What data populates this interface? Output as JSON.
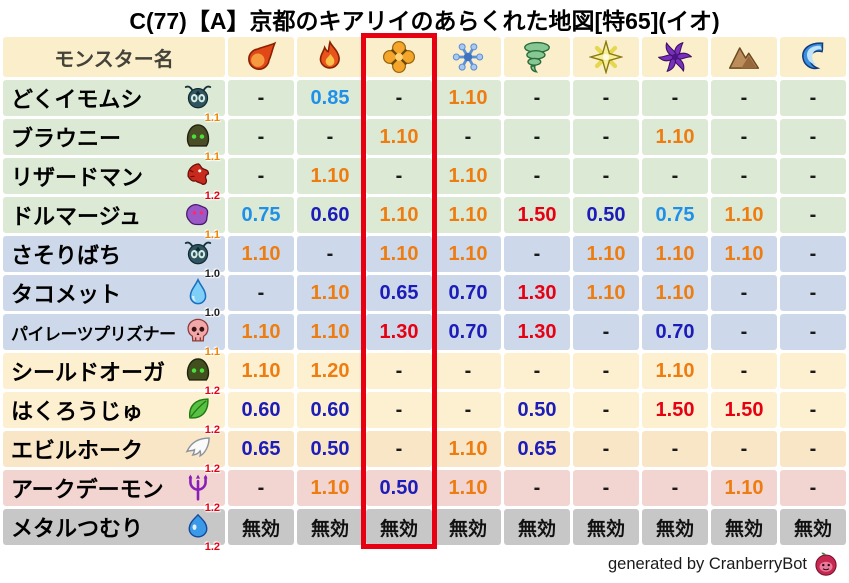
{
  "title": "C(77)【A】京都のキアリイのあらくれた地図[特65](イオ)",
  "header": {
    "monster_col_label": "モンスター名",
    "bg": "#fbeecb",
    "elements": [
      "fireball",
      "flame",
      "explosion",
      "snowflake",
      "tornado",
      "spark",
      "pinwheel",
      "mountain",
      "wave"
    ]
  },
  "highlight": {
    "element": "explosion",
    "column_index": 2,
    "color": "#e60012"
  },
  "value_colors": {
    "orange": "#ee7d11",
    "red": "#e60012",
    "blue": "#1e90e8",
    "dblue": "#1c1cb8",
    "dash": "#1a1a1a",
    "null": "#111111"
  },
  "rows": [
    {
      "name": "どくイモムシ",
      "icon": "bug",
      "badge": "1.1",
      "badge_color": "orange",
      "bg": "#dce9d5",
      "values": [
        {
          "t": "-",
          "c": "dash"
        },
        {
          "t": "0.85",
          "c": "blue"
        },
        {
          "t": "-",
          "c": "dash"
        },
        {
          "t": "1.10",
          "c": "orange"
        },
        {
          "t": "-",
          "c": "dash"
        },
        {
          "t": "-",
          "c": "dash"
        },
        {
          "t": "-",
          "c": "dash"
        },
        {
          "t": "-",
          "c": "dash"
        },
        {
          "t": "-",
          "c": "dash"
        }
      ]
    },
    {
      "name": "ブラウニー",
      "icon": "hood",
      "badge": "1.1",
      "badge_color": "orange",
      "bg": "#dce9d5",
      "values": [
        {
          "t": "-",
          "c": "dash"
        },
        {
          "t": "-",
          "c": "dash"
        },
        {
          "t": "1.10",
          "c": "orange"
        },
        {
          "t": "-",
          "c": "dash"
        },
        {
          "t": "-",
          "c": "dash"
        },
        {
          "t": "-",
          "c": "dash"
        },
        {
          "t": "1.10",
          "c": "orange"
        },
        {
          "t": "-",
          "c": "dash"
        },
        {
          "t": "-",
          "c": "dash"
        }
      ]
    },
    {
      "name": "リザードマン",
      "icon": "dragon",
      "badge": "1.2",
      "badge_color": "red",
      "bg": "#dce9d5",
      "values": [
        {
          "t": "-",
          "c": "dash"
        },
        {
          "t": "1.10",
          "c": "orange"
        },
        {
          "t": "-",
          "c": "dash"
        },
        {
          "t": "1.10",
          "c": "orange"
        },
        {
          "t": "-",
          "c": "dash"
        },
        {
          "t": "-",
          "c": "dash"
        },
        {
          "t": "-",
          "c": "dash"
        },
        {
          "t": "-",
          "c": "dash"
        },
        {
          "t": "-",
          "c": "dash"
        }
      ]
    },
    {
      "name": "ドルマージュ",
      "icon": "blob",
      "badge": "1.1",
      "badge_color": "orange",
      "bg": "#dce9d5",
      "values": [
        {
          "t": "0.75",
          "c": "blue"
        },
        {
          "t": "0.60",
          "c": "dblue"
        },
        {
          "t": "1.10",
          "c": "orange"
        },
        {
          "t": "1.10",
          "c": "orange"
        },
        {
          "t": "1.50",
          "c": "red"
        },
        {
          "t": "0.50",
          "c": "dblue"
        },
        {
          "t": "0.75",
          "c": "blue"
        },
        {
          "t": "1.10",
          "c": "orange"
        },
        {
          "t": "-",
          "c": "dash"
        }
      ]
    },
    {
      "name": "さそりばち",
      "icon": "bug",
      "badge": "1.0",
      "badge_color": "black",
      "bg": "#cdd9ea",
      "values": [
        {
          "t": "1.10",
          "c": "orange"
        },
        {
          "t": "-",
          "c": "dash"
        },
        {
          "t": "1.10",
          "c": "orange"
        },
        {
          "t": "1.10",
          "c": "orange"
        },
        {
          "t": "-",
          "c": "dash"
        },
        {
          "t": "1.10",
          "c": "orange"
        },
        {
          "t": "1.10",
          "c": "orange"
        },
        {
          "t": "1.10",
          "c": "orange"
        },
        {
          "t": "-",
          "c": "dash"
        }
      ]
    },
    {
      "name": "タコメット",
      "icon": "droplet",
      "badge": "1.0",
      "badge_color": "black",
      "bg": "#cdd9ea",
      "values": [
        {
          "t": "-",
          "c": "dash"
        },
        {
          "t": "1.10",
          "c": "orange"
        },
        {
          "t": "0.65",
          "c": "dblue"
        },
        {
          "t": "0.70",
          "c": "dblue"
        },
        {
          "t": "1.30",
          "c": "red"
        },
        {
          "t": "1.10",
          "c": "orange"
        },
        {
          "t": "1.10",
          "c": "orange"
        },
        {
          "t": "-",
          "c": "dash"
        },
        {
          "t": "-",
          "c": "dash"
        }
      ]
    },
    {
      "name": "パイレーツプリズナー",
      "icon": "skull",
      "badge": "1.1",
      "badge_color": "orange",
      "bg": "#cdd9ea",
      "values": [
        {
          "t": "1.10",
          "c": "orange"
        },
        {
          "t": "1.10",
          "c": "orange"
        },
        {
          "t": "1.30",
          "c": "red"
        },
        {
          "t": "0.70",
          "c": "dblue"
        },
        {
          "t": "1.30",
          "c": "red"
        },
        {
          "t": "-",
          "c": "dash"
        },
        {
          "t": "0.70",
          "c": "dblue"
        },
        {
          "t": "-",
          "c": "dash"
        },
        {
          "t": "-",
          "c": "dash"
        }
      ]
    },
    {
      "name": "シールドオーガ",
      "icon": "helmet",
      "badge": "1.2",
      "badge_color": "red",
      "bg": "#fdf0d0",
      "values": [
        {
          "t": "1.10",
          "c": "orange"
        },
        {
          "t": "1.20",
          "c": "orange"
        },
        {
          "t": "-",
          "c": "dash"
        },
        {
          "t": "-",
          "c": "dash"
        },
        {
          "t": "-",
          "c": "dash"
        },
        {
          "t": "-",
          "c": "dash"
        },
        {
          "t": "1.10",
          "c": "orange"
        },
        {
          "t": "-",
          "c": "dash"
        },
        {
          "t": "-",
          "c": "dash"
        }
      ]
    },
    {
      "name": "はくろうじゅ",
      "icon": "leaf",
      "badge": "1.2",
      "badge_color": "red",
      "bg": "#fdf0d0",
      "values": [
        {
          "t": "0.60",
          "c": "dblue"
        },
        {
          "t": "0.60",
          "c": "dblue"
        },
        {
          "t": "-",
          "c": "dash"
        },
        {
          "t": "-",
          "c": "dash"
        },
        {
          "t": "0.50",
          "c": "dblue"
        },
        {
          "t": "-",
          "c": "dash"
        },
        {
          "t": "1.50",
          "c": "red"
        },
        {
          "t": "1.50",
          "c": "red"
        },
        {
          "t": "-",
          "c": "dash"
        }
      ]
    },
    {
      "name": "エビルホーク",
      "icon": "wing",
      "badge": "1.2",
      "badge_color": "red",
      "bg": "#f9e6c6",
      "values": [
        {
          "t": "0.65",
          "c": "dblue"
        },
        {
          "t": "0.50",
          "c": "dblue"
        },
        {
          "t": "-",
          "c": "dash"
        },
        {
          "t": "1.10",
          "c": "orange"
        },
        {
          "t": "0.65",
          "c": "dblue"
        },
        {
          "t": "-",
          "c": "dash"
        },
        {
          "t": "-",
          "c": "dash"
        },
        {
          "t": "-",
          "c": "dash"
        },
        {
          "t": "-",
          "c": "dash"
        }
      ]
    },
    {
      "name": "アークデーモン",
      "icon": "trident",
      "badge": "1.2",
      "badge_color": "red",
      "bg": "#f2d4d0",
      "values": [
        {
          "t": "-",
          "c": "dash"
        },
        {
          "t": "1.10",
          "c": "orange"
        },
        {
          "t": "0.50",
          "c": "dblue"
        },
        {
          "t": "1.10",
          "c": "orange"
        },
        {
          "t": "-",
          "c": "dash"
        },
        {
          "t": "-",
          "c": "dash"
        },
        {
          "t": "-",
          "c": "dash"
        },
        {
          "t": "1.10",
          "c": "orange"
        },
        {
          "t": "-",
          "c": "dash"
        }
      ]
    },
    {
      "name": "メタルつむり",
      "icon": "slime",
      "badge": "1.2",
      "badge_color": "red",
      "bg": "#c7c7c7",
      "values": [
        {
          "t": "無効",
          "c": "null"
        },
        {
          "t": "無効",
          "c": "null"
        },
        {
          "t": "無効",
          "c": "null"
        },
        {
          "t": "無効",
          "c": "null"
        },
        {
          "t": "無効",
          "c": "null"
        },
        {
          "t": "無効",
          "c": "null"
        },
        {
          "t": "無効",
          "c": "null"
        },
        {
          "t": "無効",
          "c": "null"
        },
        {
          "t": "無効",
          "c": "null"
        }
      ]
    }
  ],
  "footer": {
    "credit": "generated by CranberryBot",
    "icon": "cranberry"
  },
  "chart_data": {
    "type": "table",
    "title": "C(77)【A】京都のキアリイのあらくれた地図[特65](イオ)",
    "columns": [
      "monster",
      "fireball",
      "flame",
      "explosion",
      "snowflake",
      "tornado",
      "spark",
      "pinwheel",
      "mountain",
      "wave"
    ],
    "highlighted_column": "explosion",
    "rows": [
      [
        "どくイモムシ",
        "-",
        "0.85",
        "-",
        "1.10",
        "-",
        "-",
        "-",
        "-",
        "-"
      ],
      [
        "ブラウニー",
        "-",
        "-",
        "1.10",
        "-",
        "-",
        "-",
        "1.10",
        "-",
        "-"
      ],
      [
        "リザードマン",
        "-",
        "1.10",
        "-",
        "1.10",
        "-",
        "-",
        "-",
        "-",
        "-"
      ],
      [
        "ドルマージュ",
        "0.75",
        "0.60",
        "1.10",
        "1.10",
        "1.50",
        "0.50",
        "0.75",
        "1.10",
        "-"
      ],
      [
        "さそりばち",
        "1.10",
        "-",
        "1.10",
        "1.10",
        "-",
        "1.10",
        "1.10",
        "1.10",
        "-"
      ],
      [
        "タコメット",
        "-",
        "1.10",
        "0.65",
        "0.70",
        "1.30",
        "1.10",
        "1.10",
        "-",
        "-"
      ],
      [
        "パイレーツプリズナー",
        "1.10",
        "1.10",
        "1.30",
        "0.70",
        "1.30",
        "-",
        "0.70",
        "-",
        "-"
      ],
      [
        "シールドオーガ",
        "1.10",
        "1.20",
        "-",
        "-",
        "-",
        "-",
        "1.10",
        "-",
        "-"
      ],
      [
        "はくろうじゅ",
        "0.60",
        "0.60",
        "-",
        "-",
        "0.50",
        "-",
        "1.50",
        "1.50",
        "-"
      ],
      [
        "エビルホーク",
        "0.65",
        "0.50",
        "-",
        "1.10",
        "0.65",
        "-",
        "-",
        "-",
        "-"
      ],
      [
        "アークデーモン",
        "-",
        "1.10",
        "0.50",
        "1.10",
        "-",
        "-",
        "-",
        "1.10",
        "-"
      ],
      [
        "メタルつむり",
        "無効",
        "無効",
        "無効",
        "無効",
        "無効",
        "無効",
        "無効",
        "無効",
        "無効"
      ]
    ]
  }
}
